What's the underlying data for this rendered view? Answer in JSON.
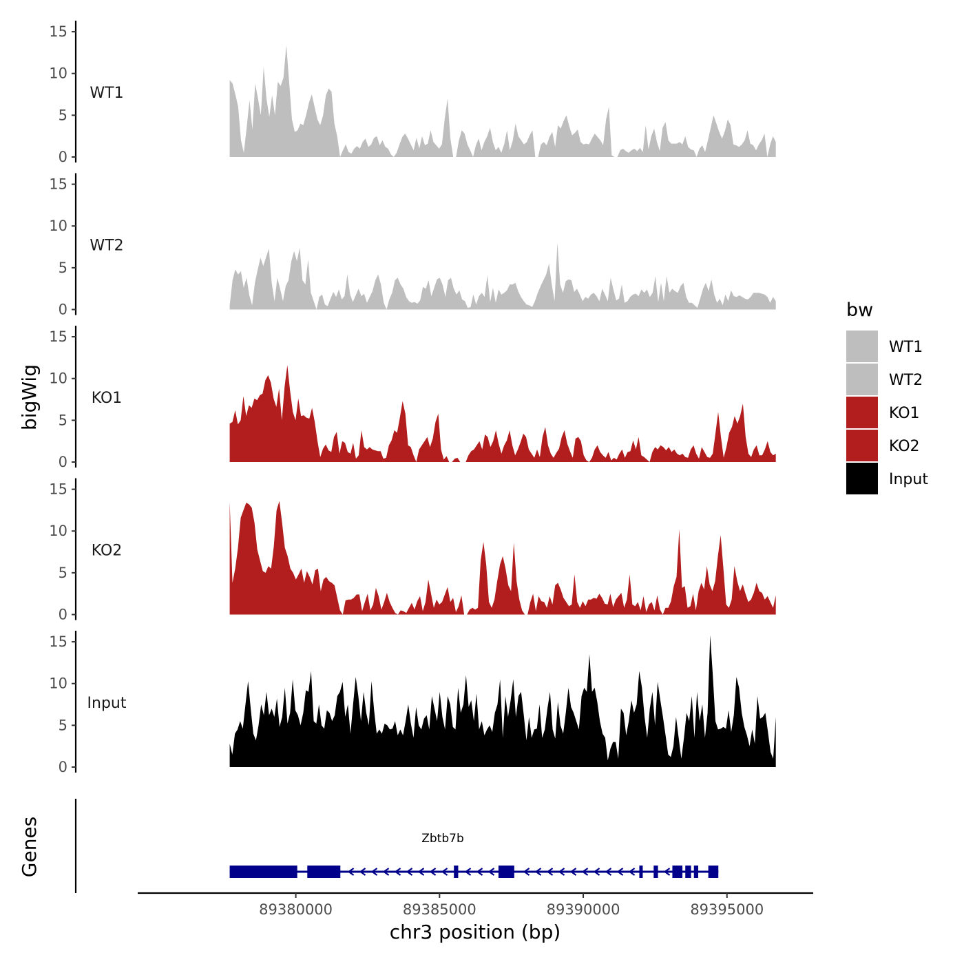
{
  "chart_data": {
    "type": "area",
    "ylabel": "bigWig",
    "xlabel": "chr3 position (bp)",
    "xlim": [
      89374500,
      89398000
    ],
    "region": [
      89377700,
      89396700
    ],
    "ylim": [
      0,
      15.5
    ],
    "yticks": [
      0,
      5,
      10,
      15
    ],
    "xticks": [
      89380000,
      89385000,
      89390000,
      89395000
    ],
    "tracks": [
      {
        "name": "WT1",
        "label": "WT1",
        "color": "#bebebe",
        "values": [
          9.2,
          8.8,
          7.5,
          6.0,
          2.0,
          0.5,
          3.5,
          6.8,
          3.3,
          8.8,
          7.0,
          5.0,
          10.8,
          7.0,
          4.8,
          7.4,
          5.0,
          9.0,
          8.5,
          9.5,
          13.4,
          9.0,
          4.5,
          3.0,
          3.2,
          4.0,
          3.8,
          5.0,
          6.5,
          7.5,
          6.0,
          4.5,
          3.8,
          5.0,
          7.4,
          8.2,
          7.8,
          4.0,
          2.5,
          0.0,
          0.8,
          1.5,
          0.6,
          0.4,
          1.0,
          1.3,
          1.0,
          1.8,
          2.2,
          1.2,
          1.5,
          2.3,
          2.5,
          1.4,
          2.0,
          1.2,
          1.0,
          0.3,
          0.0,
          0.5,
          1.5,
          2.4,
          2.8,
          2.2,
          1.5,
          0.8,
          2.3,
          1.0,
          2.5,
          1.4,
          1.6,
          3.2,
          1.8,
          1.4,
          1.0,
          1.5,
          4.6,
          7.0,
          2.2,
          0.0,
          0.0,
          2.0,
          3.2,
          2.8,
          1.5,
          0.8,
          0.0,
          1.4,
          2.2,
          0.8,
          1.8,
          2.5,
          3.5,
          1.8,
          0.8,
          1.2,
          0.5,
          1.5,
          3.2,
          0.8,
          1.9,
          4.0,
          2.5,
          2.0,
          1.5,
          1.8,
          2.6,
          3.2,
          0.0,
          0.0,
          1.5,
          1.8,
          1.4,
          2.4,
          3.0,
          1.2,
          3.8,
          3.4,
          4.3,
          5.0,
          3.7,
          2.6,
          2.9,
          3.3,
          1.8,
          1.5,
          1.6,
          1.5,
          2.2,
          2.8,
          2.4,
          2.0,
          1.4,
          4.5,
          6.0,
          0.2,
          0.0,
          0.0,
          0.8,
          1.0,
          0.7,
          0.5,
          0.8,
          1.0,
          0.7,
          1.1,
          0.6,
          3.8,
          0.9,
          2.5,
          3.4,
          1.8,
          0.7,
          3.5,
          4.2,
          2.0,
          1.6,
          1.6,
          1.6,
          1.8,
          1.5,
          2.5,
          1.2,
          0.9,
          0.8,
          0.0,
          1.0,
          1.4,
          0.6,
          2.0,
          3.5,
          5.0,
          4.0,
          3.0,
          2.2,
          3.1,
          4.5,
          3.8,
          1.5,
          1.4,
          1.2,
          1.5,
          2.0,
          3.2,
          1.6,
          1.4,
          0.8,
          1.5,
          2.0,
          2.8,
          0.0,
          1.5,
          2.5,
          1.8
        ]
      },
      {
        "name": "WT2",
        "label": "WT2",
        "color": "#bebebe",
        "values": [
          0.5,
          3.5,
          4.8,
          4.2,
          4.6,
          2.6,
          3.8,
          1.7,
          0.5,
          3.2,
          4.8,
          6.2,
          5.2,
          6.3,
          7.3,
          3.2,
          1.0,
          3.8,
          2.5,
          1.0,
          2.8,
          3.5,
          5.8,
          7.0,
          5.8,
          7.4,
          3.5,
          3.0,
          6.0,
          2.0,
          1.0,
          0.0,
          1.5,
          1.8,
          0.6,
          0.4,
          1.3,
          2.1,
          1.5,
          2.4,
          1.2,
          1.6,
          4.2,
          1.8,
          0.9,
          1.7,
          2.5,
          1.6,
          1.9,
          0.8,
          1.5,
          2.2,
          3.5,
          4.2,
          3.0,
          0.8,
          0.0,
          1.2,
          2.0,
          3.5,
          3.8,
          3.0,
          2.5,
          1.5,
          1.0,
          0.8,
          0.9,
          0.7,
          1.1,
          2.7,
          2.5,
          3.5,
          1.6,
          2.6,
          3.6,
          3.8,
          3.0,
          1.5,
          3.5,
          3.8,
          2.5,
          1.8,
          2.3,
          1.2,
          1.0,
          0.2,
          0.3,
          1.8,
          0.6,
          1.6,
          2.0,
          1.5,
          4.1,
          0.9,
          2.6,
          0.8,
          2.4,
          1.8,
          2.0,
          2.3,
          3.0,
          3.0,
          3.2,
          2.2,
          1.5,
          1.0,
          0.6,
          0.5,
          0.3,
          1.0,
          2.0,
          2.8,
          3.5,
          4.2,
          5.5,
          3.0,
          1.0,
          8.0,
          3.0,
          2.0,
          3.4,
          3.6,
          3.5,
          2.1,
          2.5,
          1.8,
          1.0,
          1.5,
          1.3,
          1.8,
          2.0,
          1.6,
          1.0,
          2.5,
          1.8,
          1.0,
          3.8,
          2.4,
          1.1,
          1.3,
          3.0,
          0.8,
          1.0,
          1.5,
          1.8,
          1.9,
          1.6,
          2.4,
          2.0,
          2.4,
          1.5,
          2.0,
          4.0,
          0.9,
          3.2,
          1.0,
          4.0,
          2.0,
          2.5,
          2.2,
          2.0,
          2.8,
          3.2,
          1.5,
          0.8,
          0.8,
          0.5,
          0.2,
          1.3,
          2.5,
          3.2,
          2.2,
          3.6,
          1.8,
          0.8,
          1.3,
          0.5,
          1.8,
          1.0,
          2.3,
          1.6,
          1.5,
          1.7,
          1.5,
          1.3,
          1.2,
          1.5,
          2.0,
          2.0,
          2.0,
          1.9,
          1.8,
          1.5,
          0.8,
          1.5,
          1.0
        ]
      },
      {
        "name": "KO1",
        "label": "KO1",
        "color": "#b21e1e",
        "values": [
          4.6,
          4.8,
          6.2,
          4.5,
          5.0,
          7.9,
          5.5,
          6.8,
          6.5,
          7.6,
          7.4,
          8.0,
          8.2,
          9.8,
          10.4,
          9.5,
          7.6,
          6.6,
          8.8,
          5.0,
          9.0,
          11.6,
          8.5,
          6.0,
          5.0,
          7.6,
          5.5,
          5.6,
          5.3,
          5.2,
          6.5,
          4.8,
          2.5,
          0.6,
          1.6,
          2.1,
          1.4,
          1.2,
          3.0,
          3.6,
          1.0,
          2.5,
          2.3,
          1.2,
          1.0,
          2.3,
          0.4,
          0.8,
          3.8,
          1.8,
          1.5,
          1.8,
          1.5,
          1.4,
          1.3,
          1.3,
          0.4,
          0.5,
          2.0,
          2.6,
          3.8,
          3.5,
          5.3,
          7.3,
          5.8,
          2.0,
          1.8,
          0.8,
          0.0,
          1.5,
          2.0,
          2.5,
          3.0,
          1.8,
          2.8,
          4.8,
          5.8,
          1.5,
          0.3,
          0.7,
          0.0,
          0.0,
          0.4,
          0.5,
          0.0,
          0.0,
          0.0,
          0.8,
          1.3,
          1.5,
          2.0,
          2.5,
          1.5,
          3.3,
          3.0,
          1.8,
          2.5,
          3.8,
          2.2,
          1.0,
          2.0,
          2.6,
          3.8,
          2.0,
          0.8,
          1.5,
          2.4,
          3.4,
          3.0,
          1.5,
          1.0,
          0.5,
          1.5,
          0.6,
          3.0,
          4.2,
          2.0,
          1.0,
          0.5,
          1.1,
          1.6,
          3.0,
          3.8,
          2.2,
          1.3,
          0.5,
          2.8,
          3.0,
          2.5,
          0.8,
          0.2,
          0.0,
          0.5,
          1.5,
          2.0,
          1.2,
          0.8,
          0.5,
          1.2,
          0.2,
          0.5,
          0.3,
          1.0,
          1.5,
          0.5,
          1.2,
          1.3,
          2.6,
          1.5,
          3.0,
          0.8,
          0.6,
          0.3,
          0.0,
          1.2,
          1.8,
          1.5,
          2.0,
          1.8,
          1.4,
          1.8,
          1.2,
          1.5,
          1.0,
          0.8,
          1.0,
          0.6,
          0.5,
          1.5,
          2.0,
          1.0,
          0.4,
          1.8,
          1.2,
          0.6,
          0.5,
          1.0,
          3.4,
          6.0,
          3.0,
          0.5,
          1.8,
          3.5,
          4.2,
          5.5,
          4.6,
          5.5,
          7.0,
          3.0,
          1.0,
          0.6,
          1.5,
          2.0,
          0.8,
          0.8,
          1.5,
          2.5,
          1.2,
          0.8,
          1.0
        ]
      },
      {
        "name": "KO2",
        "label": "KO2",
        "color": "#b21e1e",
        "values": [
          13.5,
          3.8,
          5.5,
          8.0,
          11.6,
          12.5,
          13.4,
          13.2,
          12.8,
          11.0,
          7.8,
          6.5,
          5.2,
          5.0,
          5.8,
          5.5,
          8.2,
          12.5,
          13.6,
          11.0,
          8.0,
          7.0,
          5.5,
          5.0,
          4.2,
          4.8,
          5.5,
          3.8,
          5.2,
          4.5,
          3.6,
          5.3,
          5.5,
          2.8,
          4.2,
          4.5,
          4.0,
          3.8,
          3.5,
          2.0,
          0.5,
          0.0,
          1.7,
          1.8,
          1.8,
          2.0,
          2.4,
          2.4,
          0.4,
          1.5,
          2.5,
          0.5,
          1.2,
          3.2,
          2.2,
          0.6,
          1.5,
          2.6,
          1.5,
          0.8,
          0.2,
          0.0,
          0.5,
          0.4,
          0.2,
          0.8,
          1.4,
          0.6,
          1.6,
          2.2,
          0.4,
          1.5,
          4.2,
          2.5,
          0.8,
          1.8,
          1.2,
          1.5,
          2.4,
          3.3,
          1.5,
          2.0,
          0.3,
          1.0,
          2.3,
          0.0,
          0.0,
          0.6,
          0.8,
          0.6,
          0.8,
          6.5,
          8.7,
          6.0,
          1.5,
          0.8,
          1.8,
          4.0,
          6.0,
          7.0,
          5.5,
          3.5,
          2.8,
          8.6,
          4.0,
          1.8,
          0.5,
          0.0,
          0.0,
          1.5,
          2.5,
          0.4,
          2.2,
          1.6,
          1.5,
          0.8,
          2.2,
          1.2,
          3.5,
          3.8,
          3.0,
          2.0,
          1.5,
          1.0,
          1.2,
          4.8,
          1.5,
          0.8,
          1.6,
          1.0,
          1.8,
          1.8,
          2.0,
          1.9,
          2.5,
          2.0,
          1.3,
          1.2,
          2.5,
          0.9,
          1.8,
          2.2,
          2.6,
          0.8,
          1.8,
          4.8,
          1.2,
          1.0,
          1.5,
          0.5,
          2.2,
          0.3,
          1.2,
          1.5,
          0.5,
          2.3,
          0.6,
          0.0,
          0.8,
          0.8,
          1.6,
          3.4,
          4.5,
          10.2,
          3.2,
          3.4,
          0.8,
          1.0,
          2.5,
          0.5,
          2.8,
          3.8,
          3.0,
          5.8,
          3.6,
          2.8,
          4.0,
          7.0,
          9.5,
          5.5,
          1.2,
          0.8,
          1.8,
          5.8,
          4.0,
          2.8,
          3.6,
          2.5,
          1.5,
          1.8,
          2.6,
          3.8,
          2.8,
          2.6,
          1.8,
          2.2,
          1.5,
          0.8,
          2.3
        ]
      },
      {
        "name": "Input",
        "label": "Input",
        "color": "#000000",
        "values": [
          2.8,
          1.5,
          4.0,
          4.5,
          5.5,
          4.6,
          7.5,
          10.3,
          7.0,
          4.0,
          3.2,
          5.0,
          7.5,
          6.2,
          9.0,
          6.2,
          7.0,
          6.0,
          8.2,
          4.8,
          6.0,
          9.5,
          5.2,
          6.5,
          10.5,
          6.8,
          6.2,
          5.0,
          6.5,
          9.2,
          9.0,
          11.5,
          5.5,
          5.2,
          7.5,
          5.0,
          4.6,
          6.8,
          6.5,
          5.5,
          6.2,
          8.5,
          9.0,
          10.2,
          6.0,
          7.5,
          4.0,
          7.5,
          10.8,
          8.5,
          5.5,
          9.0,
          6.5,
          5.0,
          10.3,
          6.8,
          4.0,
          4.5,
          4.0,
          5.2,
          5.0,
          4.5,
          4.6,
          5.5,
          3.8,
          4.5,
          3.8,
          5.5,
          7.5,
          5.2,
          3.5,
          7.2,
          5.0,
          4.5,
          5.8,
          6.2,
          4.5,
          8.5,
          7.0,
          5.5,
          9.0,
          6.0,
          4.5,
          8.5,
          7.5,
          4.8,
          4.5,
          9.5,
          6.5,
          7.5,
          11.0,
          7.2,
          8.0,
          5.5,
          8.8,
          4.5,
          5.5,
          3.8,
          4.5,
          5.0,
          4.2,
          6.5,
          7.5,
          10.5,
          3.5,
          8.5,
          6.0,
          8.0,
          10.5,
          6.0,
          8.5,
          9.0,
          6.2,
          3.2,
          6.0,
          3.5,
          4.5,
          4.6,
          7.5,
          3.5,
          4.5,
          7.0,
          9.0,
          4.5,
          3.4,
          7.8,
          5.0,
          4.0,
          6.5,
          9.5,
          7.2,
          6.5,
          5.5,
          4.5,
          8.5,
          9.5,
          9.0,
          13.5,
          9.0,
          9.5,
          7.8,
          5.5,
          4.0,
          3.5,
          0.8,
          2.2,
          3.0,
          3.0,
          1.0,
          7.0,
          6.5,
          3.8,
          5.5,
          8.0,
          6.5,
          7.5,
          11.5,
          9.5,
          6.0,
          3.5,
          7.0,
          9.0,
          5.0,
          10.2,
          8.0,
          6.0,
          3.8,
          1.5,
          1.2,
          2.5,
          6.0,
          3.5,
          1.0,
          3.5,
          6.5,
          5.5,
          8.5,
          3.5,
          9.0,
          5.5,
          7.5,
          3.5,
          6.5,
          15.8,
          11.0,
          5.5,
          4.5,
          4.6,
          4.8,
          4.6,
          6.8,
          4.2,
          6.2,
          10.8,
          9.5,
          6.5,
          4.8,
          3.8,
          2.5,
          4.5,
          2.8,
          8.5,
          5.8,
          6.0,
          6.5,
          4.2,
          1.8,
          1.0,
          6.0
        ]
      }
    ],
    "legend": {
      "title": "bw",
      "entries": [
        {
          "label": "WT1",
          "color": "#bebebe"
        },
        {
          "label": "WT2",
          "color": "#bebebe"
        },
        {
          "label": "KO1",
          "color": "#b21e1e"
        },
        {
          "label": "KO2",
          "color": "#b21e1e"
        },
        {
          "label": "Input",
          "color": "#000000"
        }
      ]
    },
    "genes_panel": {
      "ylabel": "Genes",
      "gene_name": "Zbtb7b",
      "color": "#00008b",
      "strand": "-",
      "span": [
        89377700,
        89394700
      ],
      "exons": [
        [
          89377700,
          89380050
        ],
        [
          89380400,
          89381550
        ],
        [
          89385500,
          89385650
        ],
        [
          89387050,
          89387600
        ],
        [
          89391950,
          89392050
        ],
        [
          89392450,
          89392600
        ],
        [
          89393100,
          89393450
        ],
        [
          89393550,
          89393750
        ],
        [
          89393850,
          89394000
        ],
        [
          89394350,
          89394700
        ]
      ]
    }
  }
}
